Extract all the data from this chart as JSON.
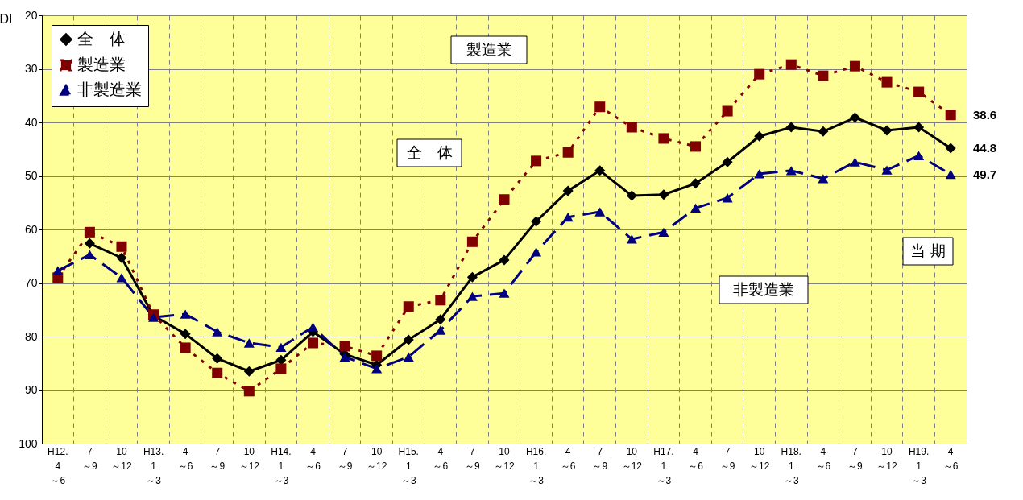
{
  "chart_data": {
    "type": "line",
    "ylabel": "DI",
    "categories": [
      "H12.\n4\n～6",
      "7\n～9",
      "10\n～12",
      "H13.\n1\n～3",
      "4\n～6",
      "7\n～9",
      "10\n～12",
      "H14.\n1\n～3",
      "4\n～6",
      "7\n～9",
      "10\n～12",
      "H15.\n1\n～3",
      "4\n～6",
      "7\n～9",
      "10\n～12",
      "H16.\n1\n～3",
      "4\n～6",
      "7\n～9",
      "10\n～12",
      "H17.\n1\n～3",
      "4\n～6",
      "7\n～9",
      "10\n～12",
      "H18.\n1\n～3",
      "4\n～6",
      "7\n～9",
      "10\n～12",
      "H19.\n1\n～3",
      "4\n～6"
    ],
    "series": [
      {
        "name": "全　体",
        "color": "#000000",
        "marker": "diamond",
        "line_style": "solid",
        "values": [
          null,
          62.6,
          65.3,
          76.1,
          79.5,
          84.1,
          86.5,
          84.4,
          79.1,
          83.3,
          85.3,
          80.6,
          76.8,
          68.9,
          65.7,
          58.5,
          52.8,
          49.0,
          53.7,
          53.5,
          51.4,
          47.4,
          42.6,
          40.9,
          41.7,
          39.1,
          41.5,
          40.9,
          44.8
        ],
        "value_labels": [
          null,
          null,
          null,
          null,
          null,
          null,
          null,
          null,
          null,
          null,
          null,
          null,
          null,
          null,
          null,
          null,
          null,
          null,
          null,
          null,
          null,
          null,
          null,
          null,
          null,
          null,
          null,
          null,
          "44.8"
        ]
      },
      {
        "name": "製造業",
        "color": "#800000",
        "marker": "square",
        "line_style": "dotted",
        "values": [
          69.0,
          60.5,
          63.2,
          75.9,
          82.1,
          86.8,
          90.2,
          86.0,
          81.2,
          81.8,
          83.6,
          74.4,
          73.2,
          62.3,
          54.4,
          47.2,
          45.6,
          37.1,
          40.9,
          43.0,
          44.5,
          37.9,
          31.0,
          29.2,
          31.3,
          29.5,
          32.5,
          34.3,
          38.6
        ],
        "value_labels": [
          null,
          null,
          null,
          null,
          null,
          null,
          null,
          null,
          null,
          null,
          null,
          null,
          null,
          null,
          null,
          null,
          null,
          null,
          null,
          null,
          null,
          null,
          null,
          null,
          null,
          null,
          null,
          null,
          "38.6"
        ]
      },
      {
        "name": "非製造業",
        "color": "#000080",
        "marker": "triangle",
        "line_style": "dashed",
        "values": [
          67.7,
          64.7,
          69.0,
          76.4,
          75.8,
          79.1,
          81.2,
          82.0,
          78.2,
          83.8,
          86.0,
          83.8,
          78.8,
          72.5,
          71.9,
          64.2,
          57.7,
          56.7,
          61.8,
          60.5,
          56.0,
          54.1,
          49.6,
          49.0,
          50.5,
          47.4,
          48.9,
          46.2,
          49.7
        ],
        "value_labels": [
          null,
          null,
          null,
          null,
          null,
          null,
          null,
          null,
          null,
          null,
          null,
          null,
          null,
          null,
          null,
          null,
          null,
          null,
          null,
          null,
          null,
          null,
          null,
          null,
          null,
          null,
          null,
          null,
          "49.7"
        ]
      }
    ],
    "annotations": [
      "製造業",
      "全　体",
      "非製造業",
      "当 期"
    ],
    "ylim": [
      100,
      20
    ],
    "yticks": [
      20,
      30,
      40,
      50,
      60,
      70,
      80,
      90,
      100
    ],
    "grid": true,
    "legend": "top left"
  }
}
